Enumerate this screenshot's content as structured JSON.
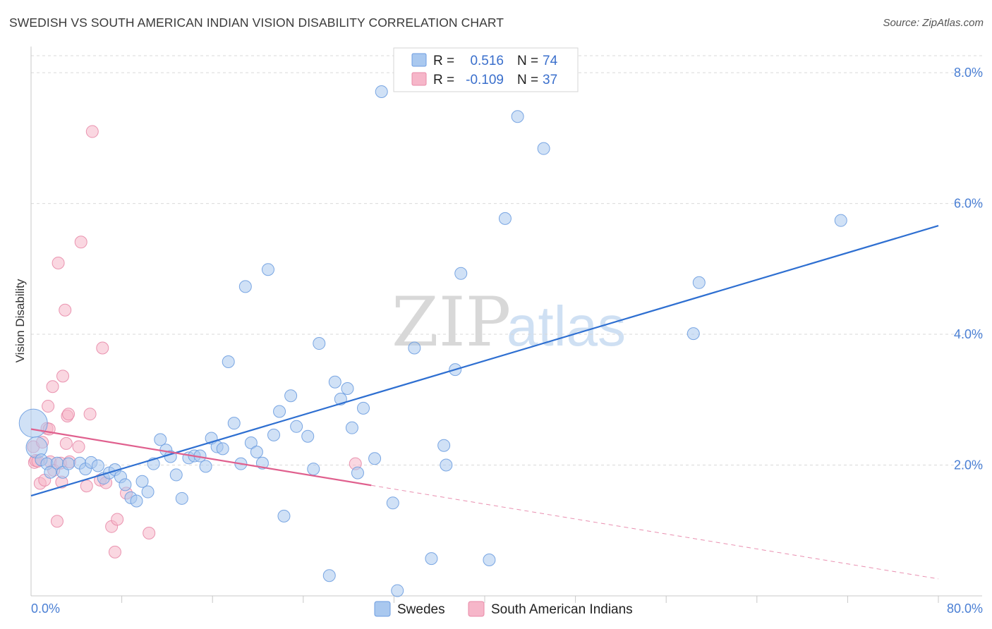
{
  "title": "SWEDISH VS SOUTH AMERICAN INDIAN VISION DISABILITY CORRELATION CHART",
  "source": "Source: ZipAtlas.com",
  "watermark": {
    "part1": "ZIP",
    "part2": "atlas"
  },
  "colors": {
    "blue": "#a9c8ef",
    "blue_stroke": "#6d9de0",
    "blue_line": "#2e6fd1",
    "pink": "#f6b6c9",
    "pink_stroke": "#e88aa8",
    "pink_line": "#e0608e",
    "tick": "#4a7fd4",
    "grid": "#d9d9d9"
  },
  "legend": {
    "r_label": "R =",
    "n_label": "N =",
    "rows": [
      {
        "r": "0.516",
        "n": "74",
        "color": "blue"
      },
      {
        "r": "-0.109",
        "n": "37",
        "color": "pink"
      }
    ]
  },
  "chart_data": {
    "type": "scatter",
    "title": "SWEDISH VS SOUTH AMERICAN INDIAN VISION DISABILITY CORRELATION CHART",
    "xlabel": "",
    "ylabel": "Vision Disability",
    "xlim": [
      0,
      80
    ],
    "ylim": [
      0,
      8.4
    ],
    "x_tick_labels": [
      "0.0%",
      "80.0%"
    ],
    "y_ticks": [
      2,
      4,
      6,
      8
    ],
    "y_tick_labels": [
      "2.0%",
      "4.0%",
      "6.0%",
      "8.0%"
    ],
    "grid": true,
    "legend_position": "top-center",
    "series": [
      {
        "name": "Swedes",
        "color": "blue",
        "trend": {
          "x0": 0,
          "y0": 1.53,
          "x1": 80,
          "y1": 5.66
        },
        "points": [
          [
            0.2,
            2.64
          ],
          [
            0.5,
            2.27
          ],
          [
            0.9,
            2.08
          ],
          [
            1.4,
            2.02
          ],
          [
            1.7,
            1.89
          ],
          [
            2.3,
            2.03
          ],
          [
            2.8,
            1.89
          ],
          [
            3.3,
            2.02
          ],
          [
            4.3,
            2.03
          ],
          [
            4.8,
            1.94
          ],
          [
            5.3,
            2.04
          ],
          [
            5.9,
            1.99
          ],
          [
            6.4,
            1.8
          ],
          [
            6.9,
            1.88
          ],
          [
            7.4,
            1.93
          ],
          [
            7.9,
            1.82
          ],
          [
            8.3,
            1.7
          ],
          [
            8.8,
            1.5
          ],
          [
            9.3,
            1.45
          ],
          [
            9.8,
            1.75
          ],
          [
            10.3,
            1.59
          ],
          [
            10.8,
            2.02
          ],
          [
            11.4,
            2.39
          ],
          [
            11.9,
            2.23
          ],
          [
            12.3,
            2.13
          ],
          [
            12.8,
            1.85
          ],
          [
            13.3,
            1.49
          ],
          [
            13.9,
            2.11
          ],
          [
            14.4,
            2.14
          ],
          [
            14.9,
            2.14
          ],
          [
            15.4,
            1.98
          ],
          [
            15.9,
            2.41
          ],
          [
            16.4,
            2.28
          ],
          [
            16.9,
            2.25
          ],
          [
            17.4,
            3.58
          ],
          [
            17.9,
            2.64
          ],
          [
            18.5,
            2.02
          ],
          [
            18.9,
            4.73
          ],
          [
            19.4,
            2.34
          ],
          [
            19.9,
            2.2
          ],
          [
            20.4,
            2.03
          ],
          [
            20.9,
            4.99
          ],
          [
            21.4,
            2.46
          ],
          [
            21.9,
            2.82
          ],
          [
            22.3,
            1.22
          ],
          [
            22.9,
            3.06
          ],
          [
            23.4,
            2.59
          ],
          [
            24.4,
            2.44
          ],
          [
            24.9,
            1.94
          ],
          [
            25.4,
            3.86
          ],
          [
            26.3,
            0.31
          ],
          [
            26.8,
            3.27
          ],
          [
            27.3,
            3.01
          ],
          [
            27.9,
            3.17
          ],
          [
            28.3,
            2.57
          ],
          [
            28.8,
            1.88
          ],
          [
            29.3,
            2.87
          ],
          [
            30.3,
            2.1
          ],
          [
            30.9,
            7.71
          ],
          [
            31.9,
            1.42
          ],
          [
            32.3,
            0.08
          ],
          [
            33.8,
            3.79
          ],
          [
            35.3,
            0.57
          ],
          [
            36.4,
            2.3
          ],
          [
            36.6,
            2.0
          ],
          [
            37.4,
            3.46
          ],
          [
            37.9,
            4.93
          ],
          [
            40.4,
            0.55
          ],
          [
            41.8,
            5.77
          ],
          [
            42.9,
            7.33
          ],
          [
            45.2,
            6.84
          ],
          [
            58.4,
            4.01
          ],
          [
            58.9,
            4.79
          ],
          [
            71.4,
            5.74
          ]
        ]
      },
      {
        "name": "South American Indians",
        "color": "pink",
        "trend": {
          "x0": 0,
          "y0": 2.55,
          "x1": 30,
          "y1": 1.69,
          "dash_x1": 80,
          "dash_y1": 0.26
        },
        "points": [
          [
            0.2,
            2.28
          ],
          [
            0.3,
            2.04
          ],
          [
            0.4,
            2.07
          ],
          [
            0.6,
            2.06
          ],
          [
            0.8,
            1.72
          ],
          [
            1.0,
            2.35
          ],
          [
            1.2,
            1.77
          ],
          [
            1.4,
            2.56
          ],
          [
            1.5,
            2.9
          ],
          [
            1.6,
            2.55
          ],
          [
            1.7,
            2.05
          ],
          [
            1.9,
            3.2
          ],
          [
            2.0,
            1.92
          ],
          [
            2.3,
            1.14
          ],
          [
            2.4,
            5.09
          ],
          [
            2.6,
            2.03
          ],
          [
            2.7,
            1.74
          ],
          [
            2.8,
            3.36
          ],
          [
            3.0,
            4.37
          ],
          [
            3.1,
            2.33
          ],
          [
            3.2,
            2.75
          ],
          [
            3.3,
            2.78
          ],
          [
            3.4,
            2.05
          ],
          [
            4.2,
            2.28
          ],
          [
            4.4,
            5.41
          ],
          [
            4.9,
            1.68
          ],
          [
            5.2,
            2.78
          ],
          [
            5.4,
            7.1
          ],
          [
            6.1,
            1.77
          ],
          [
            6.3,
            3.79
          ],
          [
            6.6,
            1.73
          ],
          [
            7.1,
            1.06
          ],
          [
            7.4,
            0.67
          ],
          [
            7.6,
            1.17
          ],
          [
            8.4,
            1.57
          ],
          [
            10.4,
            0.96
          ],
          [
            28.6,
            2.02
          ]
        ]
      }
    ]
  }
}
